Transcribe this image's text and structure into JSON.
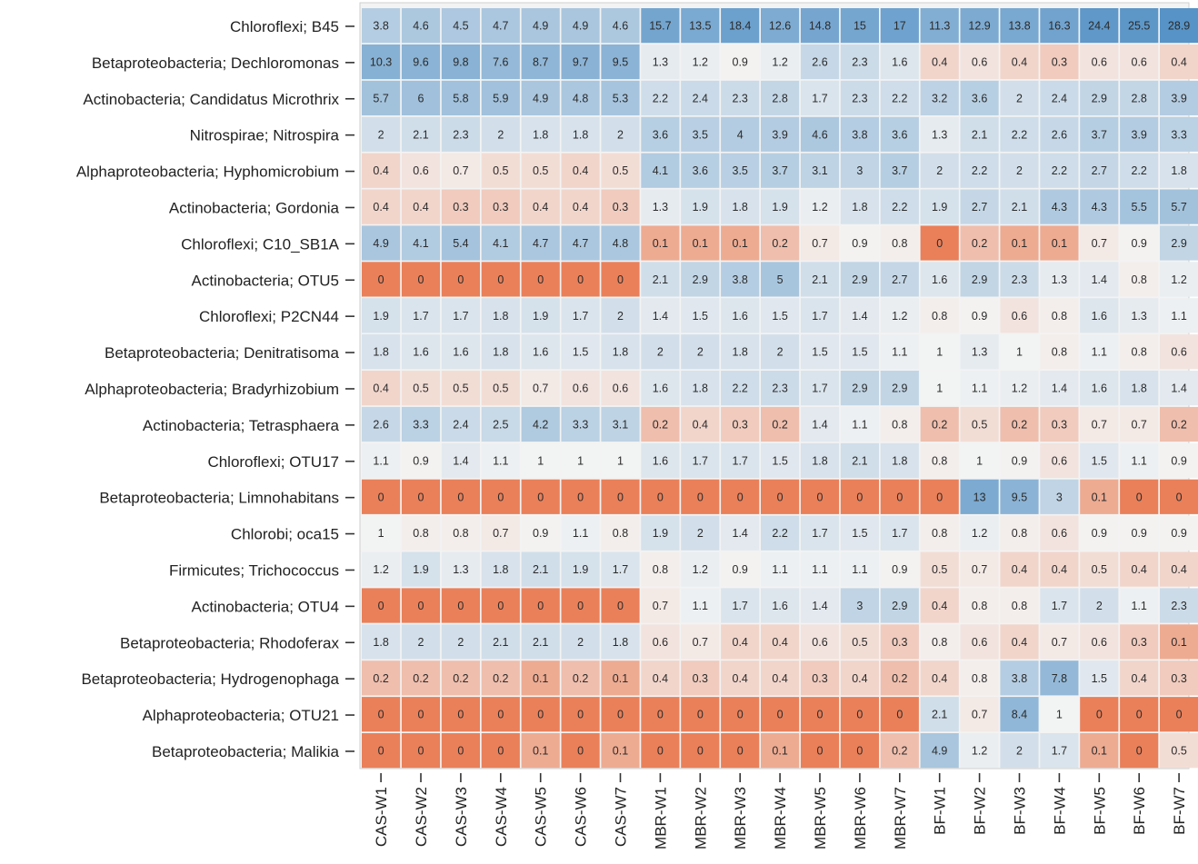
{
  "chart_data": {
    "type": "heatmap",
    "title": "",
    "xlabel": "",
    "ylabel": "",
    "columns": [
      "CAS-W1",
      "CAS-W2",
      "CAS-W3",
      "CAS-W4",
      "CAS-W5",
      "CAS-W6",
      "CAS-W7",
      "MBR-W1",
      "MBR-W2",
      "MBR-W3",
      "MBR-W4",
      "MBR-W5",
      "MBR-W6",
      "MBR-W7",
      "BF-W1",
      "BF-W2",
      "BF-W3",
      "BF-W4",
      "BF-W5",
      "BF-W6",
      "BF-W7"
    ],
    "rows": [
      "Chloroflexi; B45",
      "Betaproteobacteria; Dechloromonas",
      "Actinobacteria; Candidatus Microthrix",
      "Nitrospirae; Nitrospira",
      "Alphaproteobacteria; Hyphomicrobium",
      "Actinobacteria; Gordonia",
      "Chloroflexi; C10_SB1A",
      "Actinobacteria; OTU5",
      "Chloroflexi; P2CN44",
      "Betaproteobacteria; Denitratisoma",
      "Alphaproteobacteria; Bradyrhizobium",
      "Actinobacteria; Tetrasphaera",
      "Chloroflexi; OTU17",
      "Betaproteobacteria; Limnohabitans",
      "Chlorobi; oca15",
      "Firmicutes; Trichococcus",
      "Actinobacteria; OTU4",
      "Betaproteobacteria; Rhodoferax",
      "Betaproteobacteria; Hydrogenophaga",
      "Alphaproteobacteria; OTU21",
      "Betaproteobacteria; Malikia"
    ],
    "values": [
      [
        "3.8",
        "4.6",
        "4.5",
        "4.7",
        "4.9",
        "4.9",
        "4.6",
        "15.7",
        "13.5",
        "18.4",
        "12.6",
        "14.8",
        "15",
        "17",
        "11.3",
        "12.9",
        "13.8",
        "16.3",
        "24.4",
        "25.5",
        "28.9"
      ],
      [
        "10.3",
        "9.6",
        "9.8",
        "7.6",
        "8.7",
        "9.7",
        "9.5",
        "1.3",
        "1.2",
        "0.9",
        "1.2",
        "2.6",
        "2.3",
        "1.6",
        "0.4",
        "0.6",
        "0.4",
        "0.3",
        "0.6",
        "0.6",
        "0.4"
      ],
      [
        "5.7",
        "6",
        "5.8",
        "5.9",
        "4.9",
        "4.8",
        "5.3",
        "2.2",
        "2.4",
        "2.3",
        "2.8",
        "1.7",
        "2.3",
        "2.2",
        "3.2",
        "3.6",
        "2",
        "2.4",
        "2.9",
        "2.8",
        "3.9"
      ],
      [
        "2",
        "2.1",
        "2.3",
        "2",
        "1.8",
        "1.8",
        "2",
        "3.6",
        "3.5",
        "4",
        "3.9",
        "4.6",
        "3.8",
        "3.6",
        "1.3",
        "2.1",
        "2.2",
        "2.6",
        "3.7",
        "3.9",
        "3.3"
      ],
      [
        "0.4",
        "0.6",
        "0.7",
        "0.5",
        "0.5",
        "0.4",
        "0.5",
        "4.1",
        "3.6",
        "3.5",
        "3.7",
        "3.1",
        "3",
        "3.7",
        "2",
        "2.2",
        "2",
        "2.2",
        "2.7",
        "2.2",
        "1.8"
      ],
      [
        "0.4",
        "0.4",
        "0.3",
        "0.3",
        "0.4",
        "0.4",
        "0.3",
        "1.3",
        "1.9",
        "1.8",
        "1.9",
        "1.2",
        "1.8",
        "2.2",
        "1.9",
        "2.7",
        "2.1",
        "4.3",
        "4.3",
        "5.5",
        "5.7"
      ],
      [
        "4.9",
        "4.1",
        "5.4",
        "4.1",
        "4.7",
        "4.7",
        "4.8",
        "0.1",
        "0.1",
        "0.1",
        "0.2",
        "0.7",
        "0.9",
        "0.8",
        "0",
        "0.2",
        "0.1",
        "0.1",
        "0.7",
        "0.9",
        "2.9"
      ],
      [
        "0",
        "0",
        "0",
        "0",
        "0",
        "0",
        "0",
        "2.1",
        "2.9",
        "3.8",
        "5",
        "2.1",
        "2.9",
        "2.7",
        "1.6",
        "2.9",
        "2.3",
        "1.3",
        "1.4",
        "0.8",
        "1.2"
      ],
      [
        "1.9",
        "1.7",
        "1.7",
        "1.8",
        "1.9",
        "1.7",
        "2",
        "1.4",
        "1.5",
        "1.6",
        "1.5",
        "1.7",
        "1.4",
        "1.2",
        "0.8",
        "0.9",
        "0.6",
        "0.8",
        "1.6",
        "1.3",
        "1.1"
      ],
      [
        "1.8",
        "1.6",
        "1.6",
        "1.8",
        "1.6",
        "1.5",
        "1.8",
        "2",
        "2",
        "1.8",
        "2",
        "1.5",
        "1.5",
        "1.1",
        "1",
        "1.3",
        "1",
        "0.8",
        "1.1",
        "0.8",
        "0.6"
      ],
      [
        "0.4",
        "0.5",
        "0.5",
        "0.5",
        "0.7",
        "0.6",
        "0.6",
        "1.6",
        "1.8",
        "2.2",
        "2.3",
        "1.7",
        "2.9",
        "2.9",
        "1",
        "1.1",
        "1.2",
        "1.4",
        "1.6",
        "1.8",
        "1.4"
      ],
      [
        "2.6",
        "3.3",
        "2.4",
        "2.5",
        "4.2",
        "3.3",
        "3.1",
        "0.2",
        "0.4",
        "0.3",
        "0.2",
        "1.4",
        "1.1",
        "0.8",
        "0.2",
        "0.5",
        "0.2",
        "0.3",
        "0.7",
        "0.7",
        "0.2"
      ],
      [
        "1.1",
        "0.9",
        "1.4",
        "1.1",
        "1",
        "1",
        "1",
        "1.6",
        "1.7",
        "1.7",
        "1.5",
        "1.8",
        "2.1",
        "1.8",
        "0.8",
        "1",
        "0.9",
        "0.6",
        "1.5",
        "1.1",
        "0.9"
      ],
      [
        "0",
        "0",
        "0",
        "0",
        "0",
        "0",
        "0",
        "0",
        "0",
        "0",
        "0",
        "0",
        "0",
        "0",
        "0",
        "13",
        "9.5",
        "3",
        "0.1",
        "0",
        "0"
      ],
      [
        "1",
        "0.8",
        "0.8",
        "0.7",
        "0.9",
        "1.1",
        "0.8",
        "1.9",
        "2",
        "1.4",
        "2.2",
        "1.7",
        "1.5",
        "1.7",
        "0.8",
        "1.2",
        "0.8",
        "0.6",
        "0.9",
        "0.9",
        "0.9"
      ],
      [
        "1.2",
        "1.9",
        "1.3",
        "1.8",
        "2.1",
        "1.9",
        "1.7",
        "0.8",
        "1.2",
        "0.9",
        "1.1",
        "1.1",
        "1.1",
        "0.9",
        "0.5",
        "0.7",
        "0.4",
        "0.4",
        "0.5",
        "0.4",
        "0.4"
      ],
      [
        "0",
        "0",
        "0",
        "0",
        "0",
        "0",
        "0",
        "0.7",
        "1.1",
        "1.7",
        "1.6",
        "1.4",
        "3",
        "2.9",
        "0.4",
        "0.8",
        "0.8",
        "1.7",
        "2",
        "1.1",
        "2.3"
      ],
      [
        "1.8",
        "2",
        "2",
        "2.1",
        "2.1",
        "2",
        "1.8",
        "0.6",
        "0.7",
        "0.4",
        "0.4",
        "0.6",
        "0.5",
        "0.3",
        "0.8",
        "0.6",
        "0.4",
        "0.7",
        "0.6",
        "0.3",
        "0.1"
      ],
      [
        "0.2",
        "0.2",
        "0.2",
        "0.2",
        "0.1",
        "0.2",
        "0.1",
        "0.4",
        "0.3",
        "0.4",
        "0.4",
        "0.3",
        "0.4",
        "0.2",
        "0.4",
        "0.8",
        "3.8",
        "7.8",
        "1.5",
        "0.4",
        "0.3"
      ],
      [
        "0",
        "0",
        "0",
        "0",
        "0",
        "0",
        "0",
        "0",
        "0",
        "0",
        "0",
        "0",
        "0",
        "0",
        "2.1",
        "0.7",
        "8.4",
        "1",
        "0",
        "0",
        "0"
      ],
      [
        "0",
        "0",
        "0",
        "0",
        "0.1",
        "0",
        "0.1",
        "0",
        "0",
        "0",
        "0.1",
        "0",
        "0",
        "0.2",
        "4.9",
        "1.2",
        "2",
        "1.7",
        "0.1",
        "0",
        "0.5"
      ]
    ],
    "color_scale": {
      "type": "log-diverging",
      "low": "#e9805a",
      "mid": "#f4f4f4",
      "high": "#5592c6"
    }
  }
}
